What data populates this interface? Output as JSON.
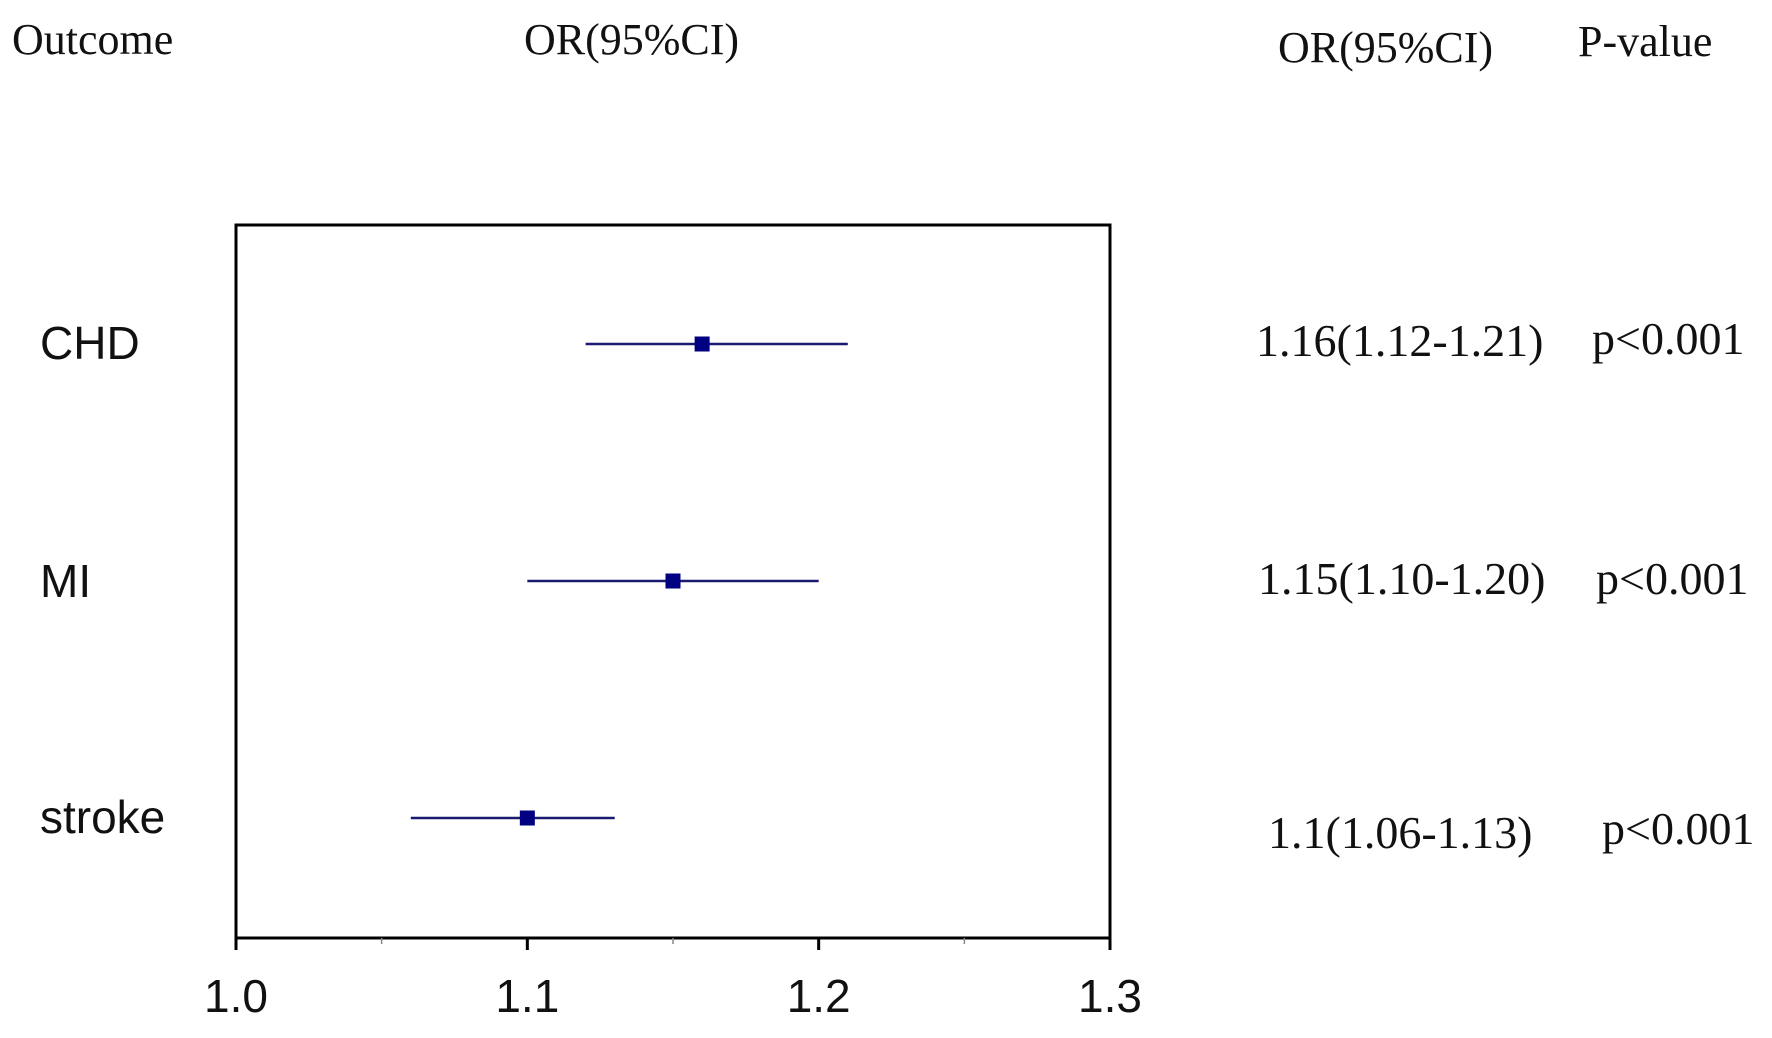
{
  "headers": {
    "outcome": "Outcome",
    "or_plot": "OR(95%CI)",
    "or_text": "OR(95%CI)",
    "pvalue": "P-value"
  },
  "colors": {
    "marker": "#000080",
    "ci_line": "#1a1a6e",
    "frame": "#000000"
  },
  "chart_data": {
    "type": "forest",
    "xlim": [
      1.0,
      1.3
    ],
    "xticks": [
      "1.0",
      "1.1",
      "1.2",
      "1.3"
    ],
    "xtick_values": [
      1.0,
      1.1,
      1.2,
      1.3
    ],
    "minor_ticks": [
      1.05,
      1.15,
      1.25
    ],
    "grid": false,
    "rows": [
      {
        "outcome": "CHD",
        "or": 1.16,
        "lower": 1.12,
        "upper": 1.21,
        "or_text": "1.16(1.12-1.21)",
        "p_text": "p<0.001"
      },
      {
        "outcome": "MI",
        "or": 1.15,
        "lower": 1.1,
        "upper": 1.2,
        "or_text": "1.15(1.10-1.20)",
        "p_text": "p<0.001"
      },
      {
        "outcome": "stroke",
        "or": 1.1,
        "lower": 1.06,
        "upper": 1.13,
        "or_text": "1.1(1.06-1.13)",
        "p_text": "p<0.001"
      }
    ]
  }
}
